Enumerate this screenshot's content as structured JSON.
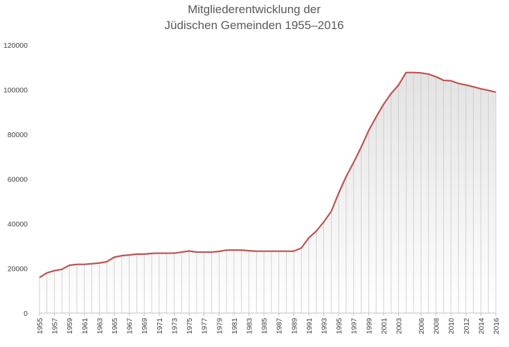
{
  "chart_data": {
    "type": "area",
    "title_line1": "Mitgliederentwicklung der",
    "title_line2": "Jüdischen Gemeinden 1955–2016",
    "xlabel": "",
    "ylabel": "",
    "ylim": [
      0,
      120000
    ],
    "yticks": [
      "0",
      "20000",
      "40000",
      "60000",
      "80000",
      "100000",
      "120000"
    ],
    "x": [
      1955,
      1956,
      1957,
      1958,
      1959,
      1960,
      1961,
      1962,
      1963,
      1964,
      1965,
      1966,
      1967,
      1968,
      1969,
      1970,
      1971,
      1972,
      1973,
      1974,
      1975,
      1976,
      1977,
      1978,
      1979,
      1980,
      1981,
      1982,
      1983,
      1984,
      1985,
      1986,
      1987,
      1988,
      1989,
      1990,
      1991,
      1992,
      1993,
      1994,
      1995,
      1996,
      1997,
      1998,
      1999,
      2000,
      2001,
      2002,
      2003,
      2004,
      2005,
      2006,
      2007,
      2008,
      2009,
      2010,
      2011,
      2012,
      2013,
      2014,
      2015,
      2016
    ],
    "xtick_labels": [
      "1955",
      "1957",
      "1959",
      "1961",
      "1963",
      "1965",
      "1967",
      "1969",
      "1971",
      "1973",
      "1975",
      "1977",
      "1979",
      "1981",
      "1983",
      "1985",
      "1987",
      "1989",
      "1991",
      "1993",
      "1995",
      "1997",
      "1999",
      "2001",
      "2003",
      "2006",
      "2008",
      "2010",
      "2012",
      "2014",
      "2016"
    ],
    "values": [
      15900,
      18000,
      19000,
      19600,
      21400,
      21800,
      21800,
      22100,
      22400,
      23000,
      25000,
      25700,
      26000,
      26400,
      26400,
      26700,
      26800,
      26800,
      26800,
      27300,
      27800,
      27300,
      27300,
      27300,
      27600,
      28200,
      28200,
      28200,
      27900,
      27700,
      27700,
      27700,
      27700,
      27700,
      27700,
      29100,
      33700,
      36700,
      40800,
      45500,
      53800,
      61200,
      67500,
      74300,
      81700,
      87800,
      93500,
      98300,
      102100,
      107700,
      107700,
      107500,
      107000,
      105800,
      104200,
      104000,
      102800,
      102100,
      101300,
      100400,
      99700,
      98900
    ],
    "grid": false,
    "legend": "none",
    "colors": {
      "line": "#c0504d",
      "drop_lines": "#c8c8c8",
      "area_top": "#e3e3e3",
      "area_bottom": "#ffffff"
    }
  }
}
